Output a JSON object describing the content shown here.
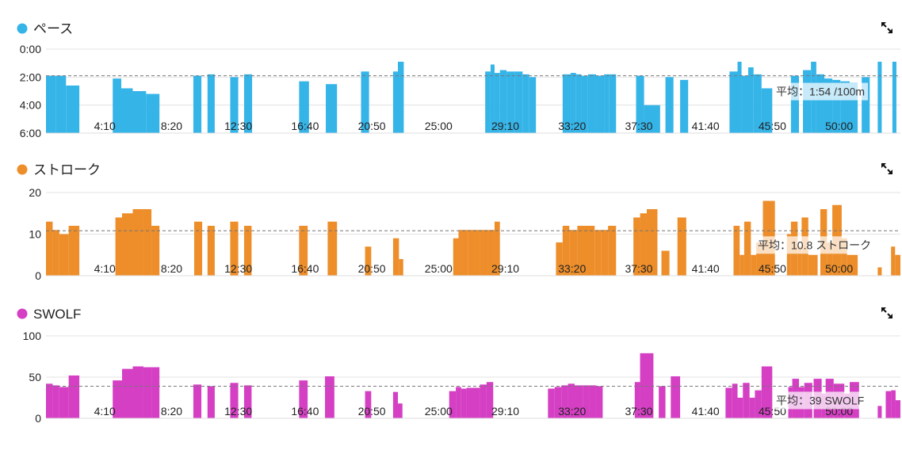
{
  "chart_data": [
    {
      "type": "bar",
      "title": "ペース",
      "color": "#35b4e8",
      "y_axis": "inverted",
      "ylim": [
        6.0,
        0.0
      ],
      "y_ticks": [
        "0:00",
        "2:00",
        "4:00",
        "6:00"
      ],
      "x_ticks": [
        "4:10",
        "8:20",
        "12:30",
        "16:40",
        "20:50",
        "25:00",
        "29:10",
        "33:20",
        "37:30",
        "41:40",
        "45:50",
        "50:00"
      ],
      "x_tick_values": [
        250,
        500,
        750,
        1000,
        1250,
        1500,
        1750,
        2000,
        2250,
        2500,
        2750,
        3000
      ],
      "xlim": [
        0,
        3200
      ],
      "average": 1.9,
      "average_label": "平均：1:54 /100m",
      "bars": [
        [
          0,
          38,
          1.9
        ],
        [
          38,
          75,
          1.9
        ],
        [
          75,
          125,
          2.6
        ],
        [
          250,
          282,
          2.1
        ],
        [
          282,
          325,
          2.8
        ],
        [
          325,
          375,
          3.0
        ],
        [
          375,
          425,
          3.2
        ],
        [
          552,
          582,
          1.9
        ],
        [
          605,
          632,
          1.8
        ],
        [
          690,
          720,
          2.0
        ],
        [
          742,
          772,
          1.8
        ],
        [
          948,
          985,
          2.3
        ],
        [
          1048,
          1090,
          2.5
        ],
        [
          1180,
          1210,
          1.6
        ],
        [
          1300,
          1318,
          1.6
        ],
        [
          1318,
          1340,
          0.9
        ],
        [
          1645,
          1665,
          1.6
        ],
        [
          1665,
          1680,
          1.1
        ],
        [
          1680,
          1700,
          1.7
        ],
        [
          1700,
          1725,
          1.5
        ],
        [
          1725,
          1755,
          1.6
        ],
        [
          1755,
          1785,
          1.6
        ],
        [
          1785,
          1810,
          1.8
        ],
        [
          1810,
          1835,
          2.0
        ],
        [
          1935,
          1965,
          1.8
        ],
        [
          1965,
          1985,
          1.7
        ],
        [
          1985,
          2005,
          1.8
        ],
        [
          2005,
          2030,
          1.9
        ],
        [
          2030,
          2060,
          1.8
        ],
        [
          2060,
          2090,
          1.9
        ],
        [
          2090,
          2110,
          1.8
        ],
        [
          2110,
          2135,
          1.8
        ],
        [
          2210,
          2240,
          1.9
        ],
        [
          2240,
          2300,
          4.0
        ],
        [
          2320,
          2350,
          2.0
        ],
        [
          2375,
          2405,
          2.2
        ],
        [
          2560,
          2590,
          1.6
        ],
        [
          2590,
          2605,
          0.9
        ],
        [
          2605,
          2630,
          1.9
        ],
        [
          2630,
          2650,
          1.3
        ],
        [
          2650,
          2680,
          1.8
        ],
        [
          2680,
          2720,
          2.8
        ],
        [
          2790,
          2820,
          1.9
        ],
        [
          2835,
          2865,
          1.5
        ],
        [
          2865,
          2885,
          0.9
        ],
        [
          2885,
          2915,
          1.8
        ],
        [
          2915,
          2945,
          2.1
        ],
        [
          2945,
          2975,
          2.2
        ],
        [
          2975,
          3010,
          2.3
        ],
        [
          3010,
          3040,
          2.4
        ],
        [
          3055,
          3085,
          2.0
        ],
        [
          3115,
          3130,
          0.9
        ],
        [
          3170,
          3185,
          0.9
        ]
      ]
    },
    {
      "type": "bar",
      "title": "ストローク",
      "color": "#ed8e2a",
      "ylim": [
        0,
        20
      ],
      "y_ticks": [
        "0",
        "10",
        "20"
      ],
      "y_tick_values": [
        0,
        10,
        20
      ],
      "x_ticks": [
        "4:10",
        "8:20",
        "12:30",
        "16:40",
        "20:50",
        "25:00",
        "29:10",
        "33:20",
        "37:30",
        "41:40",
        "45:50",
        "50:00"
      ],
      "x_tick_values": [
        250,
        500,
        750,
        1000,
        1250,
        1500,
        1750,
        2000,
        2250,
        2500,
        2750,
        3000
      ],
      "xlim": [
        0,
        3200
      ],
      "average": 10.8,
      "average_label": "平均：10.8 ストローク",
      "bars": [
        [
          0,
          25,
          13
        ],
        [
          25,
          50,
          11
        ],
        [
          50,
          85,
          10
        ],
        [
          85,
          125,
          12
        ],
        [
          260,
          285,
          14
        ],
        [
          285,
          325,
          15
        ],
        [
          325,
          365,
          16
        ],
        [
          365,
          395,
          16
        ],
        [
          395,
          425,
          12
        ],
        [
          555,
          585,
          13
        ],
        [
          605,
          632,
          12
        ],
        [
          690,
          720,
          13
        ],
        [
          742,
          770,
          12
        ],
        [
          948,
          980,
          12
        ],
        [
          1055,
          1090,
          13
        ],
        [
          1195,
          1218,
          7
        ],
        [
          1300,
          1322,
          9
        ],
        [
          1322,
          1338,
          4
        ],
        [
          1525,
          1545,
          9
        ],
        [
          1545,
          1560,
          11
        ],
        [
          1560,
          1580,
          11
        ],
        [
          1580,
          1600,
          11
        ],
        [
          1600,
          1625,
          11
        ],
        [
          1625,
          1655,
          11
        ],
        [
          1655,
          1680,
          11
        ],
        [
          1680,
          1700,
          13
        ],
        [
          1910,
          1935,
          8
        ],
        [
          1935,
          1960,
          12
        ],
        [
          1960,
          1990,
          11
        ],
        [
          1990,
          2020,
          12
        ],
        [
          2020,
          2055,
          12
        ],
        [
          2055,
          2080,
          11
        ],
        [
          2080,
          2105,
          11
        ],
        [
          2105,
          2135,
          12
        ],
        [
          2200,
          2225,
          14
        ],
        [
          2225,
          2250,
          15
        ],
        [
          2250,
          2290,
          16
        ],
        [
          2305,
          2335,
          6
        ],
        [
          2365,
          2398,
          14
        ],
        [
          2575,
          2598,
          12
        ],
        [
          2598,
          2615,
          5
        ],
        [
          2615,
          2640,
          13
        ],
        [
          2640,
          2660,
          5
        ],
        [
          2660,
          2685,
          8
        ],
        [
          2685,
          2730,
          18
        ],
        [
          2775,
          2790,
          10
        ],
        [
          2790,
          2815,
          13
        ],
        [
          2815,
          2830,
          7
        ],
        [
          2830,
          2855,
          14
        ],
        [
          2855,
          2890,
          5
        ],
        [
          2900,
          2925,
          16
        ],
        [
          2925,
          2945,
          8
        ],
        [
          2945,
          2980,
          17
        ],
        [
          2980,
          3000,
          9
        ],
        [
          3000,
          3040,
          5
        ],
        [
          3115,
          3130,
          2
        ],
        [
          3165,
          3180,
          7
        ],
        [
          3180,
          3200,
          5
        ]
      ]
    },
    {
      "type": "bar",
      "title": "SWOLF",
      "color": "#d53fc4",
      "ylim": [
        0,
        100
      ],
      "y_ticks": [
        "0",
        "50",
        "100"
      ],
      "y_tick_values": [
        0,
        50,
        100
      ],
      "x_ticks": [
        "4:10",
        "8:20",
        "12:30",
        "16:40",
        "20:50",
        "25:00",
        "29:10",
        "33:20",
        "37:30",
        "41:40",
        "45:50",
        "50:00"
      ],
      "x_tick_values": [
        250,
        500,
        750,
        1000,
        1250,
        1500,
        1750,
        2000,
        2250,
        2500,
        2750,
        3000
      ],
      "xlim": [
        0,
        3200
      ],
      "average": 39,
      "average_label": "平均：39 SWOLF",
      "bars": [
        [
          0,
          25,
          42
        ],
        [
          25,
          50,
          40
        ],
        [
          50,
          85,
          38
        ],
        [
          85,
          125,
          52
        ],
        [
          250,
          285,
          46
        ],
        [
          285,
          325,
          60
        ],
        [
          325,
          365,
          63
        ],
        [
          365,
          395,
          62
        ],
        [
          395,
          425,
          62
        ],
        [
          552,
          582,
          41
        ],
        [
          605,
          632,
          39
        ],
        [
          690,
          720,
          43
        ],
        [
          742,
          770,
          40
        ],
        [
          948,
          980,
          46
        ],
        [
          1045,
          1080,
          51
        ],
        [
          1195,
          1218,
          33
        ],
        [
          1300,
          1318,
          32
        ],
        [
          1318,
          1335,
          18
        ],
        [
          1510,
          1535,
          33
        ],
        [
          1535,
          1555,
          38
        ],
        [
          1555,
          1575,
          36
        ],
        [
          1575,
          1600,
          37
        ],
        [
          1600,
          1625,
          37
        ],
        [
          1625,
          1650,
          41
        ],
        [
          1650,
          1675,
          44
        ],
        [
          1880,
          1905,
          36
        ],
        [
          1905,
          1930,
          38
        ],
        [
          1930,
          1955,
          40
        ],
        [
          1955,
          1980,
          42
        ],
        [
          1980,
          2010,
          40
        ],
        [
          2010,
          2035,
          40
        ],
        [
          2035,
          2060,
          40
        ],
        [
          2060,
          2085,
          39
        ],
        [
          2205,
          2225,
          44
        ],
        [
          2225,
          2275,
          79
        ],
        [
          2295,
          2320,
          39
        ],
        [
          2340,
          2375,
          51
        ],
        [
          2545,
          2570,
          37
        ],
        [
          2570,
          2590,
          42
        ],
        [
          2590,
          2610,
          25
        ],
        [
          2610,
          2635,
          43
        ],
        [
          2635,
          2655,
          25
        ],
        [
          2655,
          2680,
          34
        ],
        [
          2680,
          2720,
          63
        ],
        [
          2780,
          2795,
          38
        ],
        [
          2795,
          2820,
          48
        ],
        [
          2820,
          2840,
          38
        ],
        [
          2840,
          2870,
          43
        ],
        [
          2875,
          2905,
          48
        ],
        [
          2905,
          2920,
          30
        ],
        [
          2920,
          2950,
          48
        ],
        [
          2950,
          2990,
          42
        ],
        [
          2990,
          3010,
          30
        ],
        [
          3010,
          3045,
          44
        ],
        [
          3115,
          3130,
          15
        ],
        [
          3145,
          3165,
          33
        ],
        [
          3165,
          3182,
          34
        ],
        [
          3182,
          3200,
          22
        ]
      ]
    }
  ]
}
